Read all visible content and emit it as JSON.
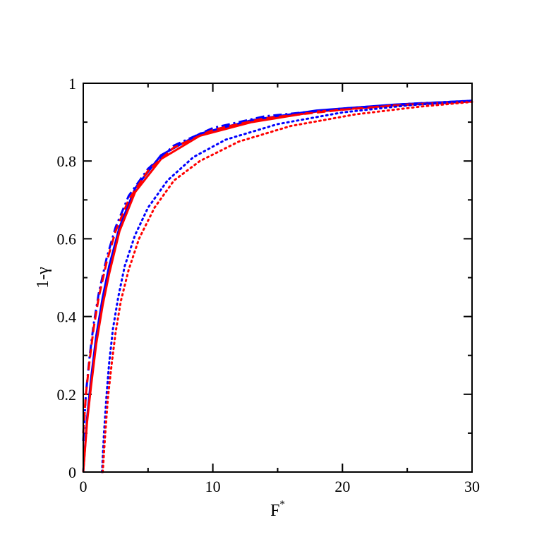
{
  "chart_data": {
    "type": "line",
    "title": "",
    "xlabel": "F",
    "xlabel_superscript": "*",
    "ylabel": "1-γ",
    "xlim": [
      0,
      30
    ],
    "ylim": [
      0,
      1
    ],
    "x_ticks": [
      0,
      10,
      20,
      30
    ],
    "x_tick_labels": [
      "0",
      "10",
      "20",
      "30"
    ],
    "y_ticks": [
      0,
      0.2,
      0.4,
      0.6,
      0.8,
      1
    ],
    "y_tick_labels": [
      "0",
      "0.2",
      "0.4",
      "0.6",
      "0.8",
      "1"
    ],
    "x_minor_step": 5,
    "y_minor_step": 0.1,
    "grid": false,
    "legend": "none",
    "series": [
      {
        "color": "#0000ff",
        "style": "solid",
        "x": [
          0,
          0.3,
          0.6,
          1.0,
          1.5,
          2.0,
          2.8,
          4.0,
          6.0,
          9.0,
          13.0,
          18.0,
          24.0,
          30.0
        ],
        "y": [
          0,
          0.14,
          0.24,
          0.35,
          0.45,
          0.53,
          0.63,
          0.73,
          0.815,
          0.87,
          0.905,
          0.93,
          0.945,
          0.955
        ]
      },
      {
        "color": "#ff0000",
        "style": "solid",
        "x": [
          0,
          0.3,
          0.6,
          1.0,
          1.5,
          2.0,
          2.8,
          4.0,
          6.0,
          9.0,
          13.0,
          18.0,
          24.0,
          30.0
        ],
        "y": [
          0,
          0.13,
          0.22,
          0.33,
          0.43,
          0.51,
          0.62,
          0.72,
          0.805,
          0.865,
          0.9,
          0.927,
          0.943,
          0.953
        ]
      },
      {
        "color": "#0000ff",
        "style": "dashdot",
        "x": [
          0,
          0.2,
          0.5,
          0.8,
          1.2,
          1.8,
          2.5,
          3.5,
          5.0,
          7.0,
          10.0,
          14.0,
          20.0,
          25.0,
          30.0
        ],
        "y": [
          0.08,
          0.2,
          0.3,
          0.38,
          0.46,
          0.55,
          0.63,
          0.71,
          0.78,
          0.84,
          0.885,
          0.915,
          0.935,
          0.947,
          0.955
        ]
      },
      {
        "color": "#ff0000",
        "style": "dashed",
        "x": [
          0,
          0.2,
          0.5,
          0.8,
          1.2,
          1.8,
          2.5,
          3.5,
          5.0,
          7.0,
          10.0,
          14.0,
          20.0,
          25.0,
          30.0
        ],
        "y": [
          0.1,
          0.2,
          0.29,
          0.37,
          0.45,
          0.54,
          0.62,
          0.7,
          0.775,
          0.835,
          0.88,
          0.91,
          0.932,
          0.945,
          0.953
        ]
      },
      {
        "color": "#0000ff",
        "style": "dotted",
        "x": [
          1.45,
          1.6,
          1.8,
          2.0,
          2.3,
          2.7,
          3.2,
          4.0,
          5.0,
          6.5,
          8.5,
          11.0,
          15.0,
          20.0,
          25.0,
          30.0
        ],
        "y": [
          0,
          0.1,
          0.2,
          0.28,
          0.37,
          0.45,
          0.53,
          0.61,
          0.68,
          0.75,
          0.81,
          0.855,
          0.895,
          0.925,
          0.943,
          0.955
        ]
      },
      {
        "color": "#ff0000",
        "style": "dotted",
        "x": [
          1.5,
          1.7,
          1.9,
          2.2,
          2.5,
          2.9,
          3.5,
          4.3,
          5.5,
          7.0,
          9.0,
          12.0,
          16.0,
          21.0,
          26.0,
          30.0
        ],
        "y": [
          0,
          0.1,
          0.19,
          0.28,
          0.36,
          0.44,
          0.52,
          0.6,
          0.68,
          0.75,
          0.8,
          0.85,
          0.89,
          0.92,
          0.94,
          0.952
        ]
      }
    ]
  }
}
